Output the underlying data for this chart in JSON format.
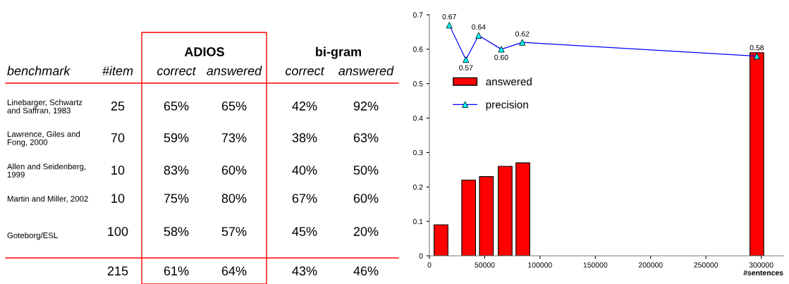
{
  "chart_data": [
    {
      "type": "other",
      "annotations": [
        "ADIOS",
        "bi-gram",
        "benchmark",
        "#item",
        "correct",
        "answered",
        "correct",
        "answered",
        "Linebarger, Schwartz\nand Saffran, 1983",
        "25",
        "65%",
        "65%",
        "42%",
        "92%",
        "Lawrence, Giles and\nFong, 2000",
        "70",
        "59%",
        "73%",
        "38%",
        "63%",
        "Allen and Seidenberg,\n1999",
        "10",
        "83%",
        "60%",
        "40%",
        "50%",
        "Martin and Miller, 2002",
        "10",
        "75%",
        "80%",
        "67%",
        "60%",
        "Goteborg/ESL",
        "100",
        "58%",
        "57%",
        "45%",
        "20%",
        "215",
        "61%",
        "64%",
        "43%",
        "46%"
      ]
    },
    {
      "type": "bar",
      "xlabel": "#sentences",
      "xlim": [
        0,
        320000
      ],
      "xticks": [
        0,
        50000,
        100000,
        150000,
        200000,
        250000,
        300000
      ],
      "ylim": [
        0,
        0.7
      ],
      "yticks": [
        0,
        0.1,
        0.2,
        0.3,
        0.4,
        0.5,
        0.6,
        0.7
      ],
      "grid": false,
      "legend": "left",
      "series": [
        {
          "name": "answered",
          "type": "bar",
          "color": "#ff0000",
          "x": [
            10500,
            35500,
            51500,
            68500,
            84500,
            296000
          ],
          "values": [
            0.09,
            0.22,
            0.23,
            0.26,
            0.27,
            0.59
          ]
        },
        {
          "name": "precision",
          "type": "line",
          "color": "#0000ff",
          "marker": "triangle",
          "value_labels": [
            "0.67",
            "0.57",
            "0.64",
            "0.60",
            "0.62",
            "0.58"
          ],
          "x": [
            18000,
            33000,
            44500,
            65000,
            84000,
            296000
          ],
          "values": [
            0.67,
            0.57,
            0.64,
            0.6,
            0.62,
            0.58
          ]
        }
      ]
    }
  ]
}
